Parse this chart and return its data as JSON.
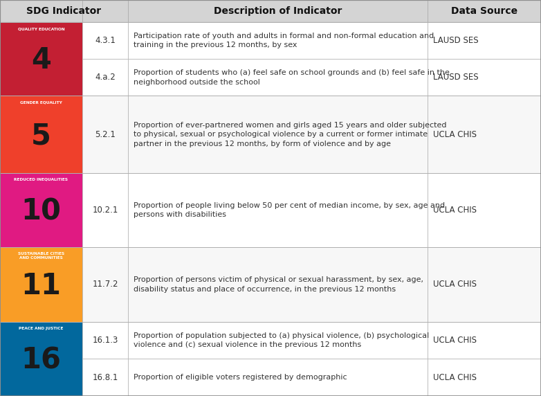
{
  "header": [
    "SDG Indicator",
    "Description of Indicator",
    "Data Source"
  ],
  "header_bg": "#d4d4d4",
  "rows": [
    {
      "sdg_num": "4",
      "sdg_label": "QUALITY EDUCATION",
      "sdg_bg": "#c31f33",
      "sdg_accent": "#bf1722",
      "row_bg": "#ffffff",
      "alt_bg": "#ffffff",
      "indicators": [
        {
          "id": "4.3.1",
          "description": "Participation rate of youth and adults in formal and non-formal education and\ntraining in the previous 12 months, by sex",
          "source": "LAUSD SES"
        },
        {
          "id": "4.a.2",
          "description": "Proportion of students who (a) feel safe on school grounds and (b) feel safe in the\nneighborhood outside the school",
          "source": "LAUSD SES"
        }
      ]
    },
    {
      "sdg_num": "5",
      "sdg_label": "GENDER EQUALITY",
      "sdg_bg": "#ef402b",
      "sdg_accent": "#e8380f",
      "row_bg": "#f7f7f7",
      "alt_bg": "#f7f7f7",
      "indicators": [
        {
          "id": "5.2.1",
          "description": "Proportion of ever-partnered women and girls aged 15 years and older subjected\nto physical, sexual or psychological violence by a current or former intimate\npartner in the previous 12 months, by form of violence and by age",
          "source": "UCLA CHIS"
        }
      ]
    },
    {
      "sdg_num": "10",
      "sdg_label": "REDUCED INEQUALITIES",
      "sdg_bg": "#e01a82",
      "sdg_accent": "#d4007a",
      "row_bg": "#ffffff",
      "alt_bg": "#ffffff",
      "indicators": [
        {
          "id": "10.2.1",
          "description": "Proportion of people living below 50 per cent of median income, by sex, age and\npersons with disabilities",
          "source": "UCLA CHIS"
        }
      ]
    },
    {
      "sdg_num": "11",
      "sdg_label": "SUSTAINABLE CITIES\nAND COMMUNITIES",
      "sdg_bg": "#f99d26",
      "sdg_accent": "#f08000",
      "row_bg": "#f7f7f7",
      "alt_bg": "#f7f7f7",
      "indicators": [
        {
          "id": "11.7.2",
          "description": "Proportion of persons victim of physical or sexual harassment, by sex, age,\ndisability status and place of occurrence, in the previous 12 months",
          "source": "UCLA CHIS"
        }
      ]
    },
    {
      "sdg_num": "16",
      "sdg_label": "PEACE AND JUSTICE",
      "sdg_bg": "#02689d",
      "sdg_accent": "#005f8e",
      "row_bg": "#ffffff",
      "alt_bg": "#ffffff",
      "indicators": [
        {
          "id": "16.1.3",
          "description": "Proportion of population subjected to (a) physical violence, (b) psychological\nviolence and (c) sexual violence in the previous 12 months",
          "source": "UCLA CHIS"
        },
        {
          "id": "16.8.1",
          "description": "Proportion of eligible voters registered by demographic",
          "source": "UCLA CHIS"
        }
      ]
    }
  ],
  "border_color": "#b0b0b0",
  "text_color": "#333333",
  "fig_bg": "#ffffff",
  "fig_w": 7.82,
  "fig_h": 5.72,
  "dpi": 100
}
